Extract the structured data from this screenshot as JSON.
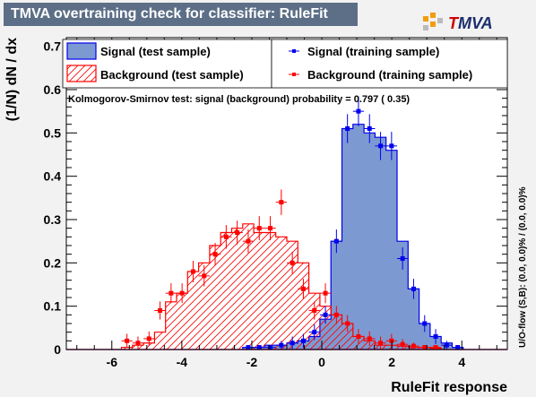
{
  "title": "TMVA overtraining check for classifier: RuleFit",
  "logo": {
    "text_t": "T",
    "text_mva": "MVA"
  },
  "colors": {
    "signal_fill": "#7d99d1",
    "signal_line": "#0000ee",
    "background_line": "#ff0000",
    "title_bg": "#5c6f87"
  },
  "legend": {
    "signal_test": "Signal (test sample)",
    "background_test": "Background (test sample)",
    "signal_train": "Signal (training sample)",
    "background_train": "Background (training sample)"
  },
  "ks_text": "Kolmogorov-Smirnov test: signal (background) probability = 0.797 ( 0.35)",
  "overflow_text": "U/O-flow (S,B): (0.0, 0.0)% / (0.0, 0.0)%",
  "chart_data": {
    "type": "histogram",
    "xlabel": "RuleFit response",
    "ylabel": "(1/N) dN  /  dx",
    "xlim": [
      -7.3,
      5.3
    ],
    "ylim": [
      0,
      0.72
    ],
    "xticks": [
      -6,
      -4,
      -2,
      0,
      2,
      4
    ],
    "yticks": [
      0,
      0.1,
      0.2,
      0.3,
      0.4,
      0.5,
      0.6,
      0.7
    ],
    "bin_edges": [
      -7.3,
      -6.985,
      -6.67,
      -6.355,
      -6.04,
      -5.725,
      -5.41,
      -5.095,
      -4.78,
      -4.465,
      -4.15,
      -3.835,
      -3.52,
      -3.205,
      -2.89,
      -2.575,
      -2.26,
      -1.945,
      -1.63,
      -1.315,
      -1.0,
      -0.685,
      -0.37,
      -0.055,
      0.26,
      0.575,
      0.89,
      1.205,
      1.52,
      1.835,
      2.15,
      2.465,
      2.78,
      3.095,
      3.41,
      3.725,
      4.04,
      4.355,
      4.67,
      4.985,
      5.3
    ],
    "series": [
      {
        "name": "Signal (test sample)",
        "style": "filled histogram",
        "values": [
          0,
          0,
          0,
          0,
          0,
          0,
          0,
          0,
          0,
          0,
          0,
          0,
          0,
          0,
          0,
          0,
          0.005,
          0.005,
          0.01,
          0.01,
          0.015,
          0.02,
          0.03,
          0.07,
          0.25,
          0.51,
          0.52,
          0.5,
          0.49,
          0.46,
          0.25,
          0.14,
          0.06,
          0.03,
          0.015,
          0.005,
          0,
          0,
          0,
          0
        ]
      },
      {
        "name": "Background (test sample)",
        "style": "hatched histogram",
        "values": [
          0,
          0,
          0,
          0,
          0,
          0.005,
          0.01,
          0.015,
          0.04,
          0.11,
          0.13,
          0.18,
          0.2,
          0.24,
          0.27,
          0.28,
          0.29,
          0.27,
          0.27,
          0.26,
          0.25,
          0.2,
          0.13,
          0.1,
          0.08,
          0.06,
          0.03,
          0.02,
          0.01,
          0.01,
          0.008,
          0.005,
          0.005,
          0.003,
          0,
          0,
          0,
          0,
          0,
          0
        ]
      },
      {
        "name": "Signal (training sample)",
        "style": "points",
        "values": [
          0,
          0,
          0,
          0,
          0,
          0,
          0,
          0,
          0,
          0,
          0,
          0,
          0,
          0,
          0,
          0,
          0.005,
          0.005,
          0.005,
          0.01,
          0.015,
          0.02,
          0.04,
          0.08,
          0.25,
          0.51,
          0.55,
          0.51,
          0.47,
          0.47,
          0.21,
          0.14,
          0.06,
          0.03,
          0.01,
          0.005,
          0,
          0,
          0,
          0
        ]
      },
      {
        "name": "Background (training sample)",
        "style": "points",
        "values": [
          0,
          0,
          0,
          0,
          0,
          0.02,
          0.015,
          0.025,
          0.09,
          0.13,
          0.13,
          0.18,
          0.17,
          0.22,
          0.26,
          0.27,
          0.25,
          0.28,
          0.28,
          0.34,
          0.2,
          0.14,
          0.09,
          0.13,
          0.08,
          0.06,
          0.03,
          0.025,
          0.015,
          0.02,
          0.012,
          0.008,
          0.005,
          0.005,
          0,
          0,
          0,
          0,
          0,
          0
        ]
      }
    ]
  }
}
